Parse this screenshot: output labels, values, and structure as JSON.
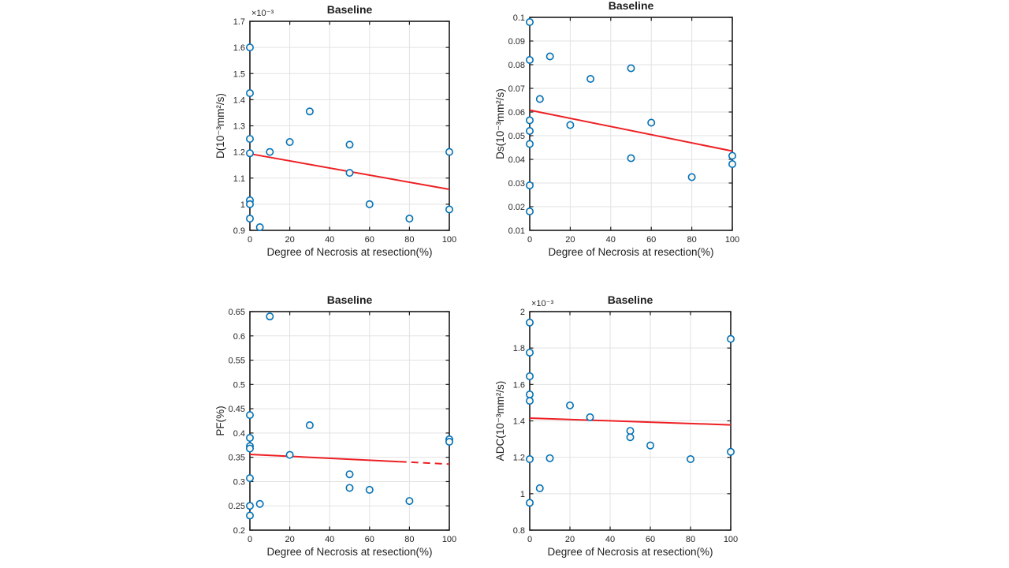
{
  "figure": {
    "background": "#ffffff"
  },
  "palette": {
    "marker_edge": "#0072BD",
    "marker_fill": "#fcf7ea",
    "trend_line": "#ED2024",
    "axis_box": "#1a1a1a",
    "grid": "#e2e2e2",
    "tick_text": "#262626",
    "label_text": "#1f1f1f"
  },
  "chart_data": [
    {
      "id": "d-baseline",
      "type": "scatter",
      "title": "Baseline",
      "xlabel": "Degree of Necrosis at resection(%)",
      "ylabel": "D(10⁻³mm²/s)",
      "y_multiplier": "×10⁻³",
      "xlim": [
        0,
        100
      ],
      "ylim": [
        0.9,
        1.7
      ],
      "x_ticks": [
        0,
        20,
        40,
        60,
        80,
        100
      ],
      "y_ticks": [
        0.9,
        1.0,
        1.1,
        1.2,
        1.3,
        1.4,
        1.5,
        1.6,
        1.7
      ],
      "y_tick_labels": [
        "0.9",
        "1",
        "1.1",
        "1.2",
        "1.3",
        "1.4",
        "1.5",
        "1.6",
        "1.7"
      ],
      "grid": true,
      "legend": "none",
      "points": [
        [
          0,
          1.6
        ],
        [
          0,
          1.425
        ],
        [
          0,
          1.25
        ],
        [
          0,
          1.195
        ],
        [
          0,
          1.015
        ],
        [
          0,
          1.0
        ],
        [
          0,
          0.945
        ],
        [
          5,
          0.912
        ],
        [
          10,
          1.2
        ],
        [
          20,
          1.238
        ],
        [
          30,
          1.355
        ],
        [
          50,
          1.228
        ],
        [
          50,
          1.12
        ],
        [
          60,
          1.0
        ],
        [
          80,
          0.945
        ],
        [
          100,
          1.2
        ],
        [
          100,
          0.98
        ]
      ],
      "trend": {
        "x": [
          0,
          100
        ],
        "y": [
          1.193,
          1.057
        ],
        "dashed_from": null
      }
    },
    {
      "id": "ds-baseline",
      "type": "scatter",
      "title": "Baseline",
      "xlabel": "Degree of Necrosis at resection(%)",
      "ylabel": "Ds(10⁻³mm²/s)",
      "y_multiplier": null,
      "xlim": [
        0,
        100
      ],
      "ylim": [
        0.01,
        0.1
      ],
      "x_ticks": [
        0,
        20,
        40,
        60,
        80,
        100
      ],
      "y_ticks": [
        0.01,
        0.02,
        0.03,
        0.04,
        0.05,
        0.06,
        0.07,
        0.08,
        0.09,
        0.1
      ],
      "y_tick_labels": [
        "0.01",
        "0.02",
        "0.03",
        "0.04",
        "0.05",
        "0.06",
        "0.07",
        "0.08",
        "0.09",
        "0.1"
      ],
      "grid": true,
      "legend": "none",
      "points": [
        [
          0,
          0.098
        ],
        [
          0,
          0.082
        ],
        [
          0,
          0.0565
        ],
        [
          0,
          0.052
        ],
        [
          0,
          0.0465
        ],
        [
          0,
          0.029
        ],
        [
          0,
          0.018
        ],
        [
          5,
          0.0655
        ],
        [
          10,
          0.0835
        ],
        [
          20,
          0.0545
        ],
        [
          30,
          0.074
        ],
        [
          50,
          0.0785
        ],
        [
          50,
          0.0405
        ],
        [
          60,
          0.0555
        ],
        [
          80,
          0.0325
        ],
        [
          100,
          0.0415
        ],
        [
          100,
          0.038
        ]
      ],
      "trend": {
        "x": [
          0,
          100
        ],
        "y": [
          0.0608,
          0.0435
        ],
        "dashed_from": null
      }
    },
    {
      "id": "pf-baseline",
      "type": "scatter",
      "title": "Baseline",
      "xlabel": "Degree of Necrosis at resection(%)",
      "ylabel": "PF(%)",
      "y_multiplier": null,
      "xlim": [
        0,
        100
      ],
      "ylim": [
        0.2,
        0.65
      ],
      "x_ticks": [
        0,
        20,
        40,
        60,
        80,
        100
      ],
      "y_ticks": [
        0.2,
        0.25,
        0.3,
        0.35,
        0.4,
        0.45,
        0.5,
        0.55,
        0.6,
        0.65
      ],
      "y_tick_labels": [
        "0.2",
        "0.25",
        "0.3",
        "0.35",
        "0.4",
        "0.45",
        "0.5",
        "0.55",
        "0.6",
        "0.65"
      ],
      "grid": true,
      "legend": "none",
      "points": [
        [
          0,
          0.437
        ],
        [
          0,
          0.39
        ],
        [
          0,
          0.373
        ],
        [
          0,
          0.368
        ],
        [
          0,
          0.307
        ],
        [
          0,
          0.25
        ],
        [
          0,
          0.23
        ],
        [
          5,
          0.254
        ],
        [
          10,
          0.64
        ],
        [
          20,
          0.355
        ],
        [
          30,
          0.416
        ],
        [
          50,
          0.315
        ],
        [
          50,
          0.287
        ],
        [
          60,
          0.283
        ],
        [
          80,
          0.26
        ],
        [
          100,
          0.387
        ],
        [
          100,
          0.382
        ]
      ],
      "trend": {
        "x": [
          0,
          100
        ],
        "y": [
          0.356,
          0.336
        ],
        "dashed_from": 75
      }
    },
    {
      "id": "adc-baseline",
      "type": "scatter",
      "title": "Baseline",
      "xlabel": "Degree of Necrosis at resection(%)",
      "ylabel": "ADC(10⁻³mm²/s)",
      "y_multiplier": "×10⁻³",
      "xlim": [
        0,
        100
      ],
      "ylim": [
        0.8,
        2.0
      ],
      "x_ticks": [
        0,
        20,
        40,
        60,
        80,
        100
      ],
      "y_ticks": [
        0.8,
        1.0,
        1.2,
        1.4,
        1.6,
        1.8,
        2.0
      ],
      "y_tick_labels": [
        "0.8",
        "1",
        "1.2",
        "1.4",
        "1.6",
        "1.8",
        "2"
      ],
      "grid": true,
      "legend": "none",
      "points": [
        [
          0,
          1.94
        ],
        [
          0,
          1.775
        ],
        [
          0,
          1.645
        ],
        [
          0,
          1.545
        ],
        [
          0,
          1.51
        ],
        [
          0,
          1.19
        ],
        [
          0,
          0.95
        ],
        [
          5,
          1.03
        ],
        [
          10,
          1.195
        ],
        [
          20,
          1.485
        ],
        [
          30,
          1.42
        ],
        [
          50,
          1.345
        ],
        [
          50,
          1.31
        ],
        [
          60,
          1.265
        ],
        [
          80,
          1.19
        ],
        [
          100,
          1.85
        ],
        [
          100,
          1.23
        ]
      ],
      "trend": {
        "x": [
          0,
          100
        ],
        "y": [
          1.415,
          1.378
        ],
        "dashed_from": null
      }
    }
  ]
}
